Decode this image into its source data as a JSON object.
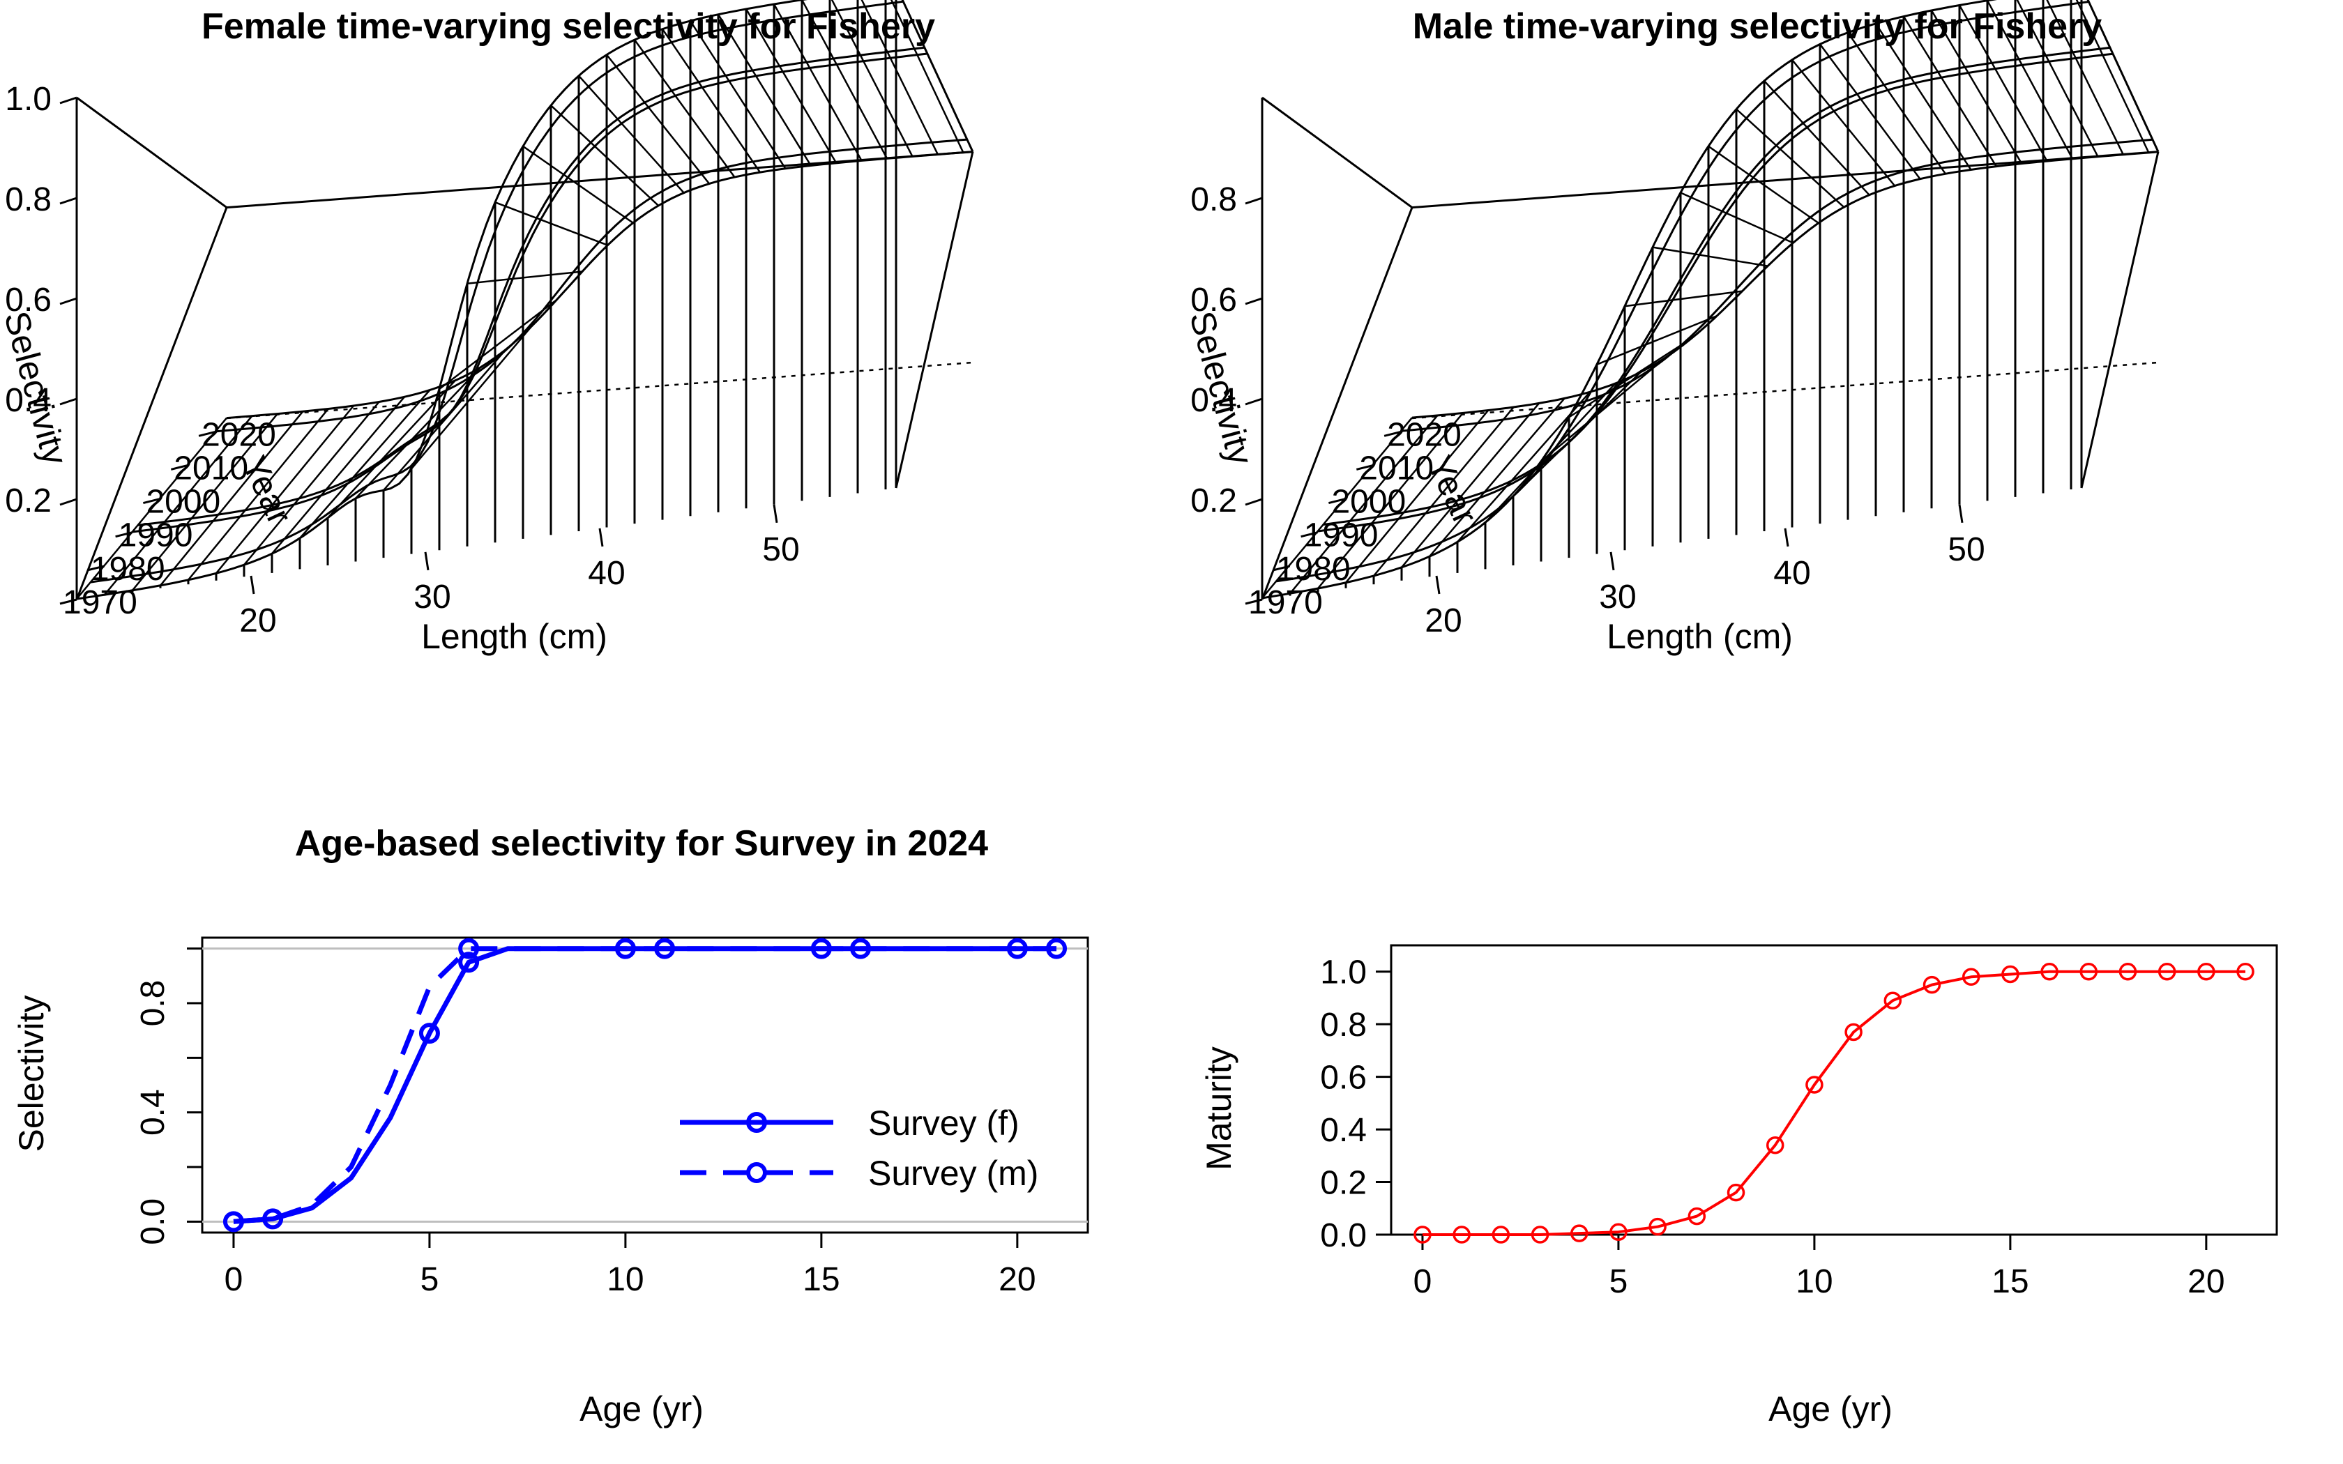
{
  "chart_data": [
    {
      "type": "surface",
      "title": "Female time-varying selectivity for Fishery",
      "xlabel": "Length (cm)",
      "ylabel": "Year",
      "zlabel": "Selectivity",
      "x_ticks": [
        "20",
        "30",
        "40",
        "50"
      ],
      "y_ticks": [
        "1970",
        "1980",
        "1990",
        "2000",
        "2010",
        "2020"
      ],
      "z_ticks": [
        "0.2",
        "0.4",
        "0.6",
        "0.8",
        "1.0"
      ],
      "x_range": [
        10,
        57
      ],
      "y_range": [
        1970,
        2024
      ],
      "z_range": [
        0,
        1
      ],
      "surface_shape": "logistic in length with a notch near 30 cm in early years",
      "color": "#000000"
    },
    {
      "type": "surface",
      "title": "Male time-varying selectivity for Fishery",
      "xlabel": "Length (cm)",
      "ylabel": "Year",
      "zlabel": "Selectivity",
      "x_ticks": [
        "20",
        "30",
        "40",
        "50"
      ],
      "y_ticks": [
        "1970",
        "1980",
        "1990",
        "2000",
        "2010",
        "2020"
      ],
      "z_ticks": [
        "0.2",
        "0.4",
        "0.6",
        "0.8"
      ],
      "x_range": [
        10,
        57
      ],
      "y_range": [
        1970,
        2024
      ],
      "z_range": [
        0,
        1
      ],
      "surface_shape": "logistic in length",
      "color": "#000000"
    },
    {
      "type": "line",
      "title": "Age-based selectivity for Survey in 2024",
      "xlabel": "Age (yr)",
      "ylabel": "Selectivity",
      "xlim": [
        -0.8,
        21.8
      ],
      "ylim": [
        -0.04,
        1.04
      ],
      "x_ticks": [
        0,
        5,
        10,
        15,
        20
      ],
      "y_ticks": [
        0.0,
        0.4,
        0.8
      ],
      "y_minor_ticks": [
        0.2,
        0.6,
        1.0
      ],
      "reference_lines": [
        0,
        1
      ],
      "legend": "right",
      "color": "#0000ff",
      "series": [
        {
          "name": "Survey (f)",
          "style": "solid",
          "x": [
            0,
            1,
            2,
            3,
            4,
            5,
            6,
            7,
            8,
            9,
            10,
            11,
            12,
            13,
            14,
            15,
            16,
            17,
            18,
            19,
            20,
            21
          ],
          "values": [
            0.0,
            0.01,
            0.05,
            0.16,
            0.38,
            0.69,
            0.95,
            1.0,
            1.0,
            1.0,
            1.0,
            1.0,
            1.0,
            1.0,
            1.0,
            1.0,
            1.0,
            1.0,
            1.0,
            1.0,
            1.0,
            1.0
          ],
          "marker_x": [
            0,
            1,
            5,
            6,
            10,
            11,
            15,
            16,
            20,
            21
          ]
        },
        {
          "name": "Survey (m)",
          "style": "dashed",
          "x": [
            0,
            1,
            2,
            3,
            4,
            5,
            6,
            7,
            8,
            9,
            10,
            11,
            12,
            13,
            14,
            15,
            16,
            17,
            18,
            19,
            20,
            21
          ],
          "values": [
            0.0,
            0.01,
            0.06,
            0.2,
            0.5,
            0.86,
            1.0,
            1.0,
            1.0,
            1.0,
            1.0,
            1.0,
            1.0,
            1.0,
            1.0,
            1.0,
            1.0,
            1.0,
            1.0,
            1.0,
            1.0,
            1.0
          ],
          "marker_x": [
            6
          ]
        }
      ]
    },
    {
      "type": "line",
      "title": "",
      "xlabel": "Age (yr)",
      "ylabel": "Maturity",
      "xlim": [
        -0.8,
        21.8
      ],
      "ylim": [
        0,
        1.1
      ],
      "x_ticks": [
        0,
        5,
        10,
        15,
        20
      ],
      "y_ticks": [
        0.0,
        0.2,
        0.4,
        0.6,
        0.8,
        1.0
      ],
      "color": "#ff0000",
      "series": [
        {
          "x": [
            0,
            1,
            2,
            3,
            4,
            5,
            6,
            7,
            8,
            9,
            10,
            11,
            12,
            13,
            14,
            15,
            16,
            17,
            18,
            19,
            20,
            21
          ],
          "values": [
            0.0,
            0.0,
            0.0,
            0.0,
            0.005,
            0.01,
            0.03,
            0.07,
            0.16,
            0.34,
            0.57,
            0.77,
            0.89,
            0.95,
            0.98,
            0.99,
            1.0,
            1.0,
            1.0,
            1.0,
            1.0,
            1.0
          ]
        }
      ]
    }
  ]
}
